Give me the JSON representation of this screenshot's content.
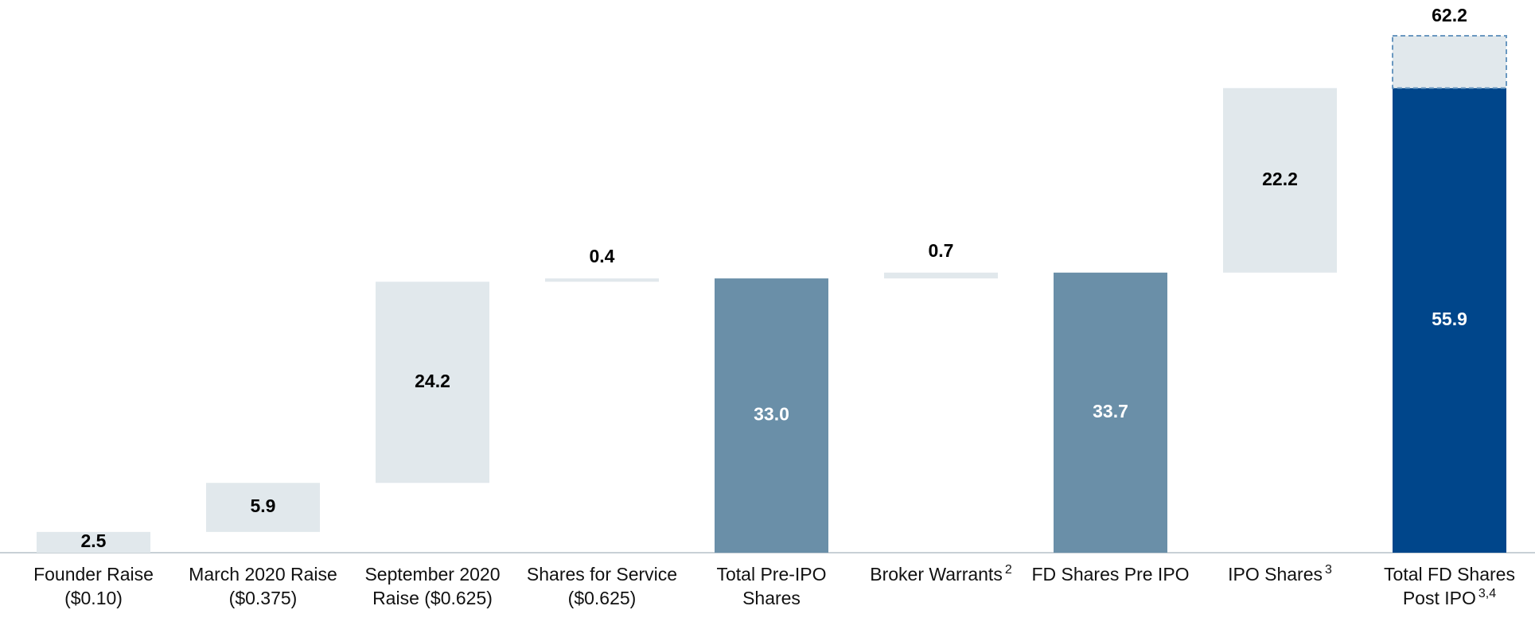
{
  "chart_data": {
    "type": "waterfall",
    "categories": [
      "Founder Raise ($0.10)",
      "March 2020 Raise ($0.375)",
      "September 2020 Raise ($0.625)",
      "Shares for Service ($0.625)",
      "Total Pre-IPO Shares",
      "Broker Warrants",
      "FD Shares Pre IPO",
      "IPO Shares",
      "Total FD Shares Post IPO"
    ],
    "footnotes": [
      null,
      null,
      null,
      null,
      null,
      "2",
      null,
      "3",
      "3,4"
    ],
    "kinds": [
      "step",
      "step",
      "step",
      "step",
      "total",
      "step",
      "total",
      "step",
      "total"
    ],
    "values": [
      2.5,
      5.9,
      24.2,
      0.4,
      33.0,
      0.7,
      33.7,
      22.2,
      55.9
    ],
    "value_labels": [
      "2.5",
      "5.9",
      "24.2",
      "0.4",
      "33.0",
      "0.7",
      "33.7",
      "22.2",
      "55.9"
    ],
    "extended_total": 62.2,
    "colors": {
      "step": "#e1e8ec",
      "total": "#6a8fa8",
      "final": "#00468b"
    },
    "ylim": [
      0,
      66.5
    ]
  }
}
